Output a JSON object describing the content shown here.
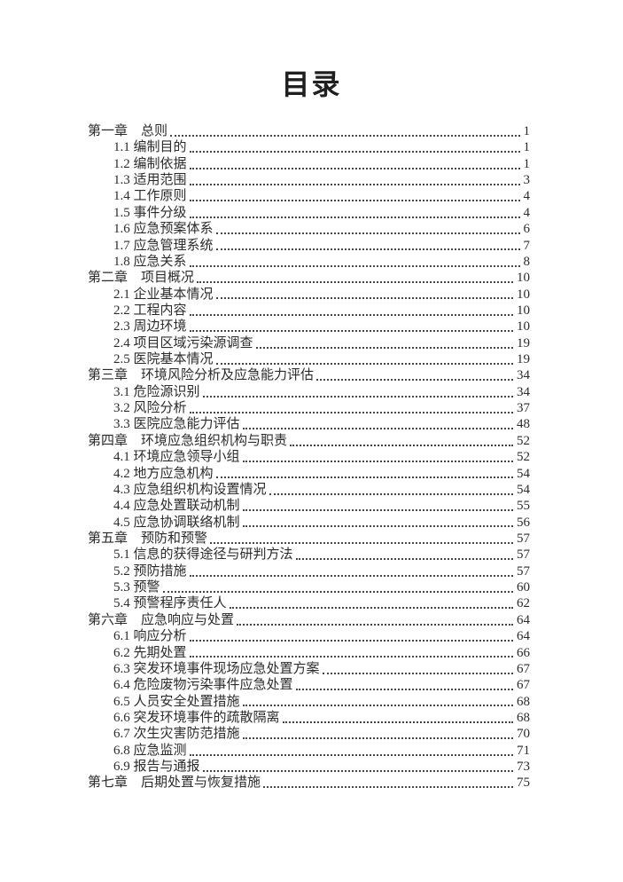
{
  "page": {
    "title": "目录"
  },
  "toc": {
    "entries": [
      {
        "level": 1,
        "label": "第一章　总则",
        "page": "1"
      },
      {
        "level": 2,
        "label": "1.1 编制目的",
        "page": "1"
      },
      {
        "level": 2,
        "label": "1.2 编制依据",
        "page": "1"
      },
      {
        "level": 2,
        "label": "1.3 适用范围",
        "page": "3"
      },
      {
        "level": 2,
        "label": "1.4 工作原则",
        "page": "4"
      },
      {
        "level": 2,
        "label": "1.5 事件分级",
        "page": "4"
      },
      {
        "level": 2,
        "label": "1.6 应急预案体系",
        "page": "6"
      },
      {
        "level": 2,
        "label": "1.7 应急管理系统",
        "page": "7"
      },
      {
        "level": 2,
        "label": "1.8 应急关系",
        "page": "8"
      },
      {
        "level": 1,
        "label": "第二章　项目概况",
        "page": "10"
      },
      {
        "level": 2,
        "label": "2.1 企业基本情况",
        "page": "10"
      },
      {
        "level": 2,
        "label": "2.2 工程内容",
        "page": "10"
      },
      {
        "level": 2,
        "label": "2.3 周边环境",
        "page": "10"
      },
      {
        "level": 2,
        "label": "2.4 项目区域污染源调查",
        "page": "19"
      },
      {
        "level": 2,
        "label": "2.5 医院基本情况",
        "page": "19"
      },
      {
        "level": 1,
        "label": "第三章　环境风险分析及应急能力评估",
        "page": "34"
      },
      {
        "level": 2,
        "label": "3.1 危险源识别",
        "page": "34"
      },
      {
        "level": 2,
        "label": "3.2 风险分析",
        "page": "37"
      },
      {
        "level": 2,
        "label": "3.3 医院应急能力评估",
        "page": "48"
      },
      {
        "level": 1,
        "label": "第四章　环境应急组织机构与职责",
        "page": "52"
      },
      {
        "level": 2,
        "label": "4.1 环境应急领导小组",
        "page": "52"
      },
      {
        "level": 2,
        "label": "4.2 地方应急机构",
        "page": "54"
      },
      {
        "level": 2,
        "label": "4.3 应急组织机构设置情况",
        "page": "54"
      },
      {
        "level": 2,
        "label": "4.4 应急处置联动机制",
        "page": "55"
      },
      {
        "level": 2,
        "label": "4.5 应急协调联络机制",
        "page": "56"
      },
      {
        "level": 1,
        "label": "第五章　预防和预警",
        "page": "57"
      },
      {
        "level": 2,
        "label": "5.1 信息的获得途径与研判方法",
        "page": "57"
      },
      {
        "level": 2,
        "label": "5.2 预防措施",
        "page": "57"
      },
      {
        "level": 2,
        "label": "5.3 预警",
        "page": "60"
      },
      {
        "level": 2,
        "label": "5.4 预警程序责任人",
        "page": "62"
      },
      {
        "level": 1,
        "label": "第六章　应急响应与处置",
        "page": "64"
      },
      {
        "level": 2,
        "label": "6.1 响应分析",
        "page": "64"
      },
      {
        "level": 2,
        "label": "6.2 先期处置",
        "page": "66"
      },
      {
        "level": 2,
        "label": "6.3 突发环境事件现场应急处置方案",
        "page": "67"
      },
      {
        "level": 2,
        "label": "6.4 危险废物污染事件应急处置",
        "page": "67"
      },
      {
        "level": 2,
        "label": "6.5 人员安全处置措施",
        "page": "68"
      },
      {
        "level": 2,
        "label": "6.6 突发环境事件的疏散隔离",
        "page": "68"
      },
      {
        "level": 2,
        "label": "6.7 次生灾害防范措施",
        "page": "70"
      },
      {
        "level": 2,
        "label": "6.8 应急监测",
        "page": "71"
      },
      {
        "level": 2,
        "label": "6.9 报告与通报",
        "page": "73"
      },
      {
        "level": 1,
        "label": "第七章　后期处置与恢复措施",
        "page": "75"
      }
    ]
  }
}
